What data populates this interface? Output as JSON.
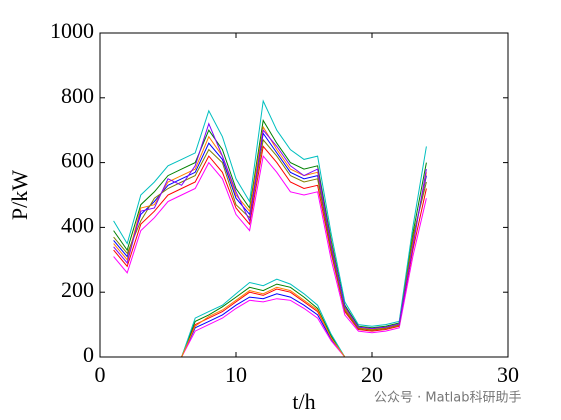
{
  "chart_data": {
    "type": "line",
    "xlabel": "t/h",
    "ylabel": "P/kW",
    "watermark": "公众号 · Matlab科研助手",
    "x": [
      1,
      2,
      3,
      4,
      5,
      6,
      7,
      8,
      9,
      10,
      11,
      12,
      13,
      14,
      15,
      16,
      17,
      18,
      19,
      20,
      21,
      22,
      23,
      24
    ],
    "xlim": [
      0,
      30
    ],
    "xticks": [
      0,
      10,
      20,
      30
    ],
    "ylim": [
      0,
      1000
    ],
    "yticks": [
      0,
      200,
      400,
      600,
      800,
      1000
    ],
    "series": [
      {
        "color": "#0000ff",
        "values": [
          360,
          310,
          440,
          480,
          530,
          550,
          570,
          660,
          610,
          490,
          440,
          690,
          630,
          570,
          550,
          560,
          340,
          150,
          90,
          85,
          90,
          100,
          360,
          560
        ]
      },
      {
        "color": "#ff0000",
        "values": [
          330,
          280,
          410,
          450,
          500,
          520,
          540,
          620,
          570,
          460,
          410,
          650,
          600,
          540,
          520,
          530,
          320,
          140,
          85,
          80,
          85,
          95,
          330,
          520
        ]
      },
      {
        "color": "#008000",
        "values": [
          390,
          330,
          470,
          510,
          560,
          580,
          600,
          700,
          640,
          520,
          460,
          730,
          660,
          600,
          580,
          590,
          360,
          160,
          95,
          90,
          95,
          105,
          380,
          600
        ]
      },
      {
        "color": "#ff00ff",
        "values": [
          310,
          260,
          390,
          430,
          480,
          500,
          520,
          600,
          550,
          440,
          390,
          620,
          570,
          510,
          500,
          510,
          300,
          130,
          80,
          75,
          80,
          90,
          310,
          490
        ]
      },
      {
        "color": "#00bfbf",
        "values": [
          420,
          350,
          500,
          540,
          590,
          610,
          630,
          760,
          680,
          550,
          480,
          790,
          700,
          640,
          610,
          620,
          380,
          170,
          100,
          95,
          100,
          110,
          400,
          650
        ]
      },
      {
        "color": "#ff8000",
        "values": [
          350,
          300,
          460,
          470,
          540,
          560,
          580,
          680,
          620,
          500,
          450,
          710,
          640,
          580,
          560,
          570,
          350,
          150,
          90,
          85,
          90,
          100,
          350,
          570
        ]
      },
      {
        "color": "#808000",
        "values": [
          370,
          320,
          420,
          490,
          520,
          540,
          560,
          640,
          600,
          470,
          430,
          670,
          620,
          560,
          540,
          550,
          330,
          145,
          88,
          83,
          88,
          98,
          370,
          540
        ]
      },
      {
        "color": "#8000ff",
        "values": [
          340,
          290,
          450,
          460,
          550,
          530,
          590,
          720,
          620,
          510,
          420,
          700,
          650,
          590,
          560,
          580,
          345,
          155,
          92,
          88,
          92,
          102,
          340,
          580
        ]
      },
      {
        "color": "#ff0000",
        "values": [
          null,
          null,
          null,
          null,
          null,
          0,
          100,
          120,
          140,
          170,
          200,
          190,
          210,
          200,
          170,
          140,
          60,
          0,
          null,
          null,
          null,
          null,
          null,
          null
        ]
      },
      {
        "color": "#0000ff",
        "values": [
          null,
          null,
          null,
          null,
          null,
          0,
          90,
          110,
          130,
          160,
          185,
          180,
          195,
          185,
          160,
          130,
          55,
          0,
          null,
          null,
          null,
          null,
          null,
          null
        ]
      },
      {
        "color": "#008000",
        "values": [
          null,
          null,
          null,
          null,
          null,
          0,
          110,
          130,
          155,
          185,
          215,
          205,
          225,
          215,
          185,
          150,
          65,
          0,
          null,
          null,
          null,
          null,
          null,
          null
        ]
      },
      {
        "color": "#ff00ff",
        "values": [
          null,
          null,
          null,
          null,
          null,
          0,
          80,
          100,
          120,
          150,
          175,
          170,
          180,
          175,
          150,
          120,
          50,
          0,
          null,
          null,
          null,
          null,
          null,
          null
        ]
      },
      {
        "color": "#00bfbf",
        "values": [
          null,
          null,
          null,
          null,
          null,
          0,
          120,
          140,
          160,
          195,
          230,
          220,
          240,
          225,
          195,
          160,
          70,
          0,
          null,
          null,
          null,
          null,
          null,
          null
        ]
      },
      {
        "color": "#ff8000",
        "values": [
          null,
          null,
          null,
          null,
          null,
          0,
          95,
          125,
          145,
          175,
          205,
          195,
          215,
          205,
          175,
          145,
          58,
          0,
          null,
          null,
          null,
          null,
          null,
          null
        ]
      }
    ]
  }
}
